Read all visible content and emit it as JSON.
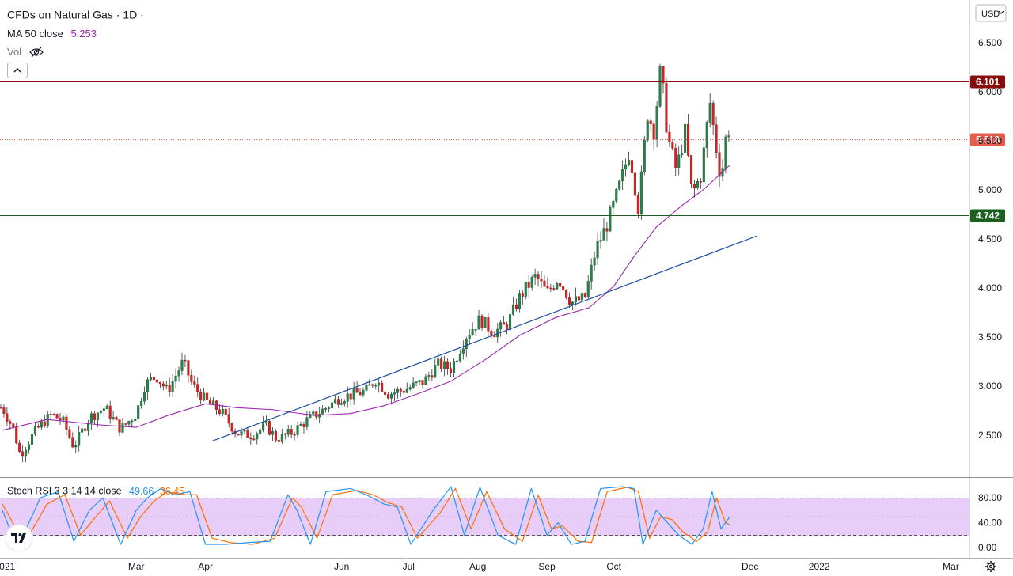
{
  "header": {
    "symbol": "CFDs on Natural Gas",
    "interval": "1D",
    "ma_label": "MA 50 close",
    "ma_value": "5.253",
    "vol_label": "Vol",
    "currency": "USD",
    "collapse_icon": "chevron-up-icon",
    "eye_icon": "eye-off-icon"
  },
  "stoch": {
    "label": "Stoch RSI 3 3 14 14 close",
    "k_value": "49.66",
    "d_value": "36.45",
    "levels": [
      "80.00",
      "40.00",
      "0.00"
    ]
  },
  "colors": {
    "up": "#26a69a",
    "down": "#ef5350",
    "body_up": "#1f6e3a",
    "body_down": "#b71c1c",
    "ma": "#9c27b0",
    "trendline": "#1e4fa0",
    "resistance": "#880e0e",
    "support": "#1b5e20",
    "last_price": "#e35c4c",
    "stoch_k": "#2196f3",
    "stoch_d": "#ff6d00",
    "stoch_band": "#e7cdf7"
  },
  "logo": "TradingView",
  "settings_icon": "gear-icon",
  "chart_data": {
    "type": "candlestick",
    "title": "CFDs on Natural Gas",
    "y_axis_ticks": [
      "6.500",
      "6.000",
      "5.500",
      "5.000",
      "4.500",
      "4.000",
      "3.500",
      "3.000",
      "2.500"
    ],
    "x_axis_ticks": [
      "2021",
      "Mar",
      "Apr",
      "Jun",
      "Jul",
      "Aug",
      "Sep",
      "Oct",
      "Dec",
      "2022",
      "Mar"
    ],
    "horizontal_levels": [
      {
        "value": 6.101,
        "label": "6.101",
        "style": "resistance"
      },
      {
        "value": 4.742,
        "label": "4.742",
        "style": "support"
      }
    ],
    "last_price": {
      "value": 5.518,
      "label": "5.518"
    },
    "trendline": {
      "from": [
        "Apr",
        2.44
      ],
      "to": [
        "Nov",
        4.53
      ]
    },
    "ylim": [
      2.05,
      6.7
    ],
    "price_path": [
      [
        "2020-12-31",
        2.78
      ],
      [
        "2021-01-05",
        2.56
      ],
      [
        "2021-01-08",
        2.3
      ],
      [
        "2021-01-15",
        2.55
      ],
      [
        "2021-01-22",
        2.71
      ],
      [
        "2021-01-27",
        2.65
      ],
      [
        "2021-02-01",
        2.38
      ],
      [
        "2021-02-08",
        2.68
      ],
      [
        "2021-02-15",
        2.78
      ],
      [
        "2021-02-22",
        2.56
      ],
      [
        "2021-03-01",
        2.72
      ],
      [
        "2021-03-05",
        3.02
      ],
      [
        "2021-03-10",
        3.1
      ],
      [
        "2021-03-15",
        2.95
      ],
      [
        "2021-03-22",
        3.25
      ],
      [
        "2021-03-26",
        3.02
      ],
      [
        "2021-04-01",
        2.85
      ],
      [
        "2021-04-08",
        2.74
      ],
      [
        "2021-04-15",
        2.52
      ],
      [
        "2021-04-22",
        2.5
      ],
      [
        "2021-04-28",
        2.6
      ],
      [
        "2021-05-03",
        2.46
      ],
      [
        "2021-05-10",
        2.53
      ],
      [
        "2021-05-17",
        2.66
      ],
      [
        "2021-05-24",
        2.76
      ],
      [
        "2021-05-31",
        2.88
      ],
      [
        "2021-06-07",
        2.92
      ],
      [
        "2021-06-12",
        2.95
      ],
      [
        "2021-06-16",
        3.07
      ],
      [
        "2021-06-22",
        2.92
      ],
      [
        "2021-06-30",
        2.97
      ],
      [
        "2021-07-08",
        3.05
      ],
      [
        "2021-07-14",
        3.22
      ],
      [
        "2021-07-20",
        3.18
      ],
      [
        "2021-07-27",
        3.52
      ],
      [
        "2021-08-02",
        3.68
      ],
      [
        "2021-08-08",
        3.55
      ],
      [
        "2021-08-14",
        3.62
      ],
      [
        "2021-08-20",
        3.92
      ],
      [
        "2021-08-27",
        4.12
      ],
      [
        "2021-09-01",
        3.95
      ],
      [
        "2021-09-06",
        4.1
      ],
      [
        "2021-09-12",
        3.85
      ],
      [
        "2021-09-18",
        3.9
      ],
      [
        "2021-09-23",
        4.4
      ],
      [
        "2021-09-28",
        4.65
      ],
      [
        "2021-10-03",
        5.0
      ],
      [
        "2021-10-08",
        5.4
      ],
      [
        "2021-10-12",
        4.8
      ],
      [
        "2021-10-16",
        5.78
      ],
      [
        "2021-10-19",
        5.6
      ],
      [
        "2021-10-22",
        6.25
      ],
      [
        "2021-10-25",
        5.55
      ],
      [
        "2021-10-29",
        5.2
      ],
      [
        "2021-11-02",
        5.6
      ],
      [
        "2021-11-05",
        4.95
      ],
      [
        "2021-11-09",
        5.15
      ],
      [
        "2021-11-13",
        5.9
      ],
      [
        "2021-11-16",
        5.4
      ],
      [
        "2021-11-18",
        5.1
      ],
      [
        "2021-11-21",
        5.7
      ],
      [
        "2021-11-22",
        5.52
      ]
    ],
    "ma50_path": [
      [
        "2020-12-31",
        2.55
      ],
      [
        "2021-01-20",
        2.66
      ],
      [
        "2021-02-15",
        2.6
      ],
      [
        "2021-03-01",
        2.58
      ],
      [
        "2021-03-15",
        2.7
      ],
      [
        "2021-04-01",
        2.82
      ],
      [
        "2021-04-15",
        2.78
      ],
      [
        "2021-05-01",
        2.76
      ],
      [
        "2021-05-20",
        2.7
      ],
      [
        "2021-06-05",
        2.72
      ],
      [
        "2021-06-20",
        2.8
      ],
      [
        "2021-07-05",
        2.92
      ],
      [
        "2021-07-20",
        3.05
      ],
      [
        "2021-08-05",
        3.28
      ],
      [
        "2021-08-20",
        3.52
      ],
      [
        "2021-09-05",
        3.7
      ],
      [
        "2021-09-20",
        3.8
      ],
      [
        "2021-10-01",
        4.02
      ],
      [
        "2021-10-10",
        4.32
      ],
      [
        "2021-10-20",
        4.62
      ],
      [
        "2021-11-01",
        4.85
      ],
      [
        "2021-11-10",
        5.0
      ],
      [
        "2021-11-22",
        5.253
      ]
    ],
    "stoch_k_path": [
      [
        "2020-12-31",
        60
      ],
      [
        "2021-01-05",
        15
      ],
      [
        "2021-01-10",
        25
      ],
      [
        "2021-01-17",
        80
      ],
      [
        "2021-01-25",
        90
      ],
      [
        "2021-02-01",
        10
      ],
      [
        "2021-02-08",
        60
      ],
      [
        "2021-02-14",
        80
      ],
      [
        "2021-02-22",
        5
      ],
      [
        "2021-03-01",
        60
      ],
      [
        "2021-03-06",
        80
      ],
      [
        "2021-03-12",
        95
      ],
      [
        "2021-03-18",
        85
      ],
      [
        "2021-03-25",
        90
      ],
      [
        "2021-04-01",
        5
      ],
      [
        "2021-04-10",
        5
      ],
      [
        "2021-04-20",
        8
      ],
      [
        "2021-04-30",
        10
      ],
      [
        "2021-05-08",
        85
      ],
      [
        "2021-05-12",
        60
      ],
      [
        "2021-05-18",
        5
      ],
      [
        "2021-05-25",
        90
      ],
      [
        "2021-06-05",
        95
      ],
      [
        "2021-06-12",
        85
      ],
      [
        "2021-06-20",
        70
      ],
      [
        "2021-06-26",
        65
      ],
      [
        "2021-07-02",
        5
      ],
      [
        "2021-07-12",
        60
      ],
      [
        "2021-07-20",
        98
      ],
      [
        "2021-07-26",
        20
      ],
      [
        "2021-08-02",
        97
      ],
      [
        "2021-08-10",
        20
      ],
      [
        "2021-08-18",
        5
      ],
      [
        "2021-08-25",
        95
      ],
      [
        "2021-09-01",
        20
      ],
      [
        "2021-09-06",
        40
      ],
      [
        "2021-09-12",
        5
      ],
      [
        "2021-09-18",
        10
      ],
      [
        "2021-09-25",
        95
      ],
      [
        "2021-10-05",
        98
      ],
      [
        "2021-10-10",
        95
      ],
      [
        "2021-10-14",
        5
      ],
      [
        "2021-10-20",
        60
      ],
      [
        "2021-10-25",
        40
      ],
      [
        "2021-10-30",
        20
      ],
      [
        "2021-11-05",
        5
      ],
      [
        "2021-11-10",
        30
      ],
      [
        "2021-11-14",
        90
      ],
      [
        "2021-11-18",
        30
      ],
      [
        "2021-11-22",
        49.66
      ]
    ],
    "stoch_d_path": [
      [
        "2020-12-31",
        70
      ],
      [
        "2021-01-07",
        25
      ],
      [
        "2021-01-12",
        20
      ],
      [
        "2021-01-20",
        70
      ],
      [
        "2021-01-28",
        85
      ],
      [
        "2021-02-04",
        20
      ],
      [
        "2021-02-11",
        50
      ],
      [
        "2021-02-17",
        75
      ],
      [
        "2021-02-25",
        15
      ],
      [
        "2021-03-03",
        50
      ],
      [
        "2021-03-09",
        75
      ],
      [
        "2021-03-15",
        90
      ],
      [
        "2021-03-21",
        85
      ],
      [
        "2021-03-28",
        85
      ],
      [
        "2021-04-04",
        15
      ],
      [
        "2021-04-12",
        8
      ],
      [
        "2021-04-22",
        5
      ],
      [
        "2021-05-02",
        15
      ],
      [
        "2021-05-10",
        80
      ],
      [
        "2021-05-14",
        65
      ],
      [
        "2021-05-21",
        15
      ],
      [
        "2021-05-28",
        85
      ],
      [
        "2021-06-08",
        92
      ],
      [
        "2021-06-15",
        85
      ],
      [
        "2021-06-22",
        72
      ],
      [
        "2021-06-28",
        65
      ],
      [
        "2021-07-05",
        15
      ],
      [
        "2021-07-15",
        55
      ],
      [
        "2021-07-22",
        95
      ],
      [
        "2021-07-29",
        30
      ],
      [
        "2021-08-05",
        90
      ],
      [
        "2021-08-13",
        30
      ],
      [
        "2021-08-21",
        10
      ],
      [
        "2021-08-28",
        85
      ],
      [
        "2021-09-03",
        30
      ],
      [
        "2021-09-08",
        35
      ],
      [
        "2021-09-15",
        10
      ],
      [
        "2021-09-21",
        8
      ],
      [
        "2021-09-28",
        90
      ],
      [
        "2021-10-07",
        97
      ],
      [
        "2021-10-12",
        90
      ],
      [
        "2021-10-17",
        15
      ],
      [
        "2021-10-22",
        50
      ],
      [
        "2021-10-27",
        45
      ],
      [
        "2021-11-01",
        25
      ],
      [
        "2021-11-07",
        10
      ],
      [
        "2021-11-12",
        25
      ],
      [
        "2021-11-16",
        80
      ],
      [
        "2021-11-20",
        40
      ],
      [
        "2021-11-22",
        36.45
      ]
    ]
  }
}
